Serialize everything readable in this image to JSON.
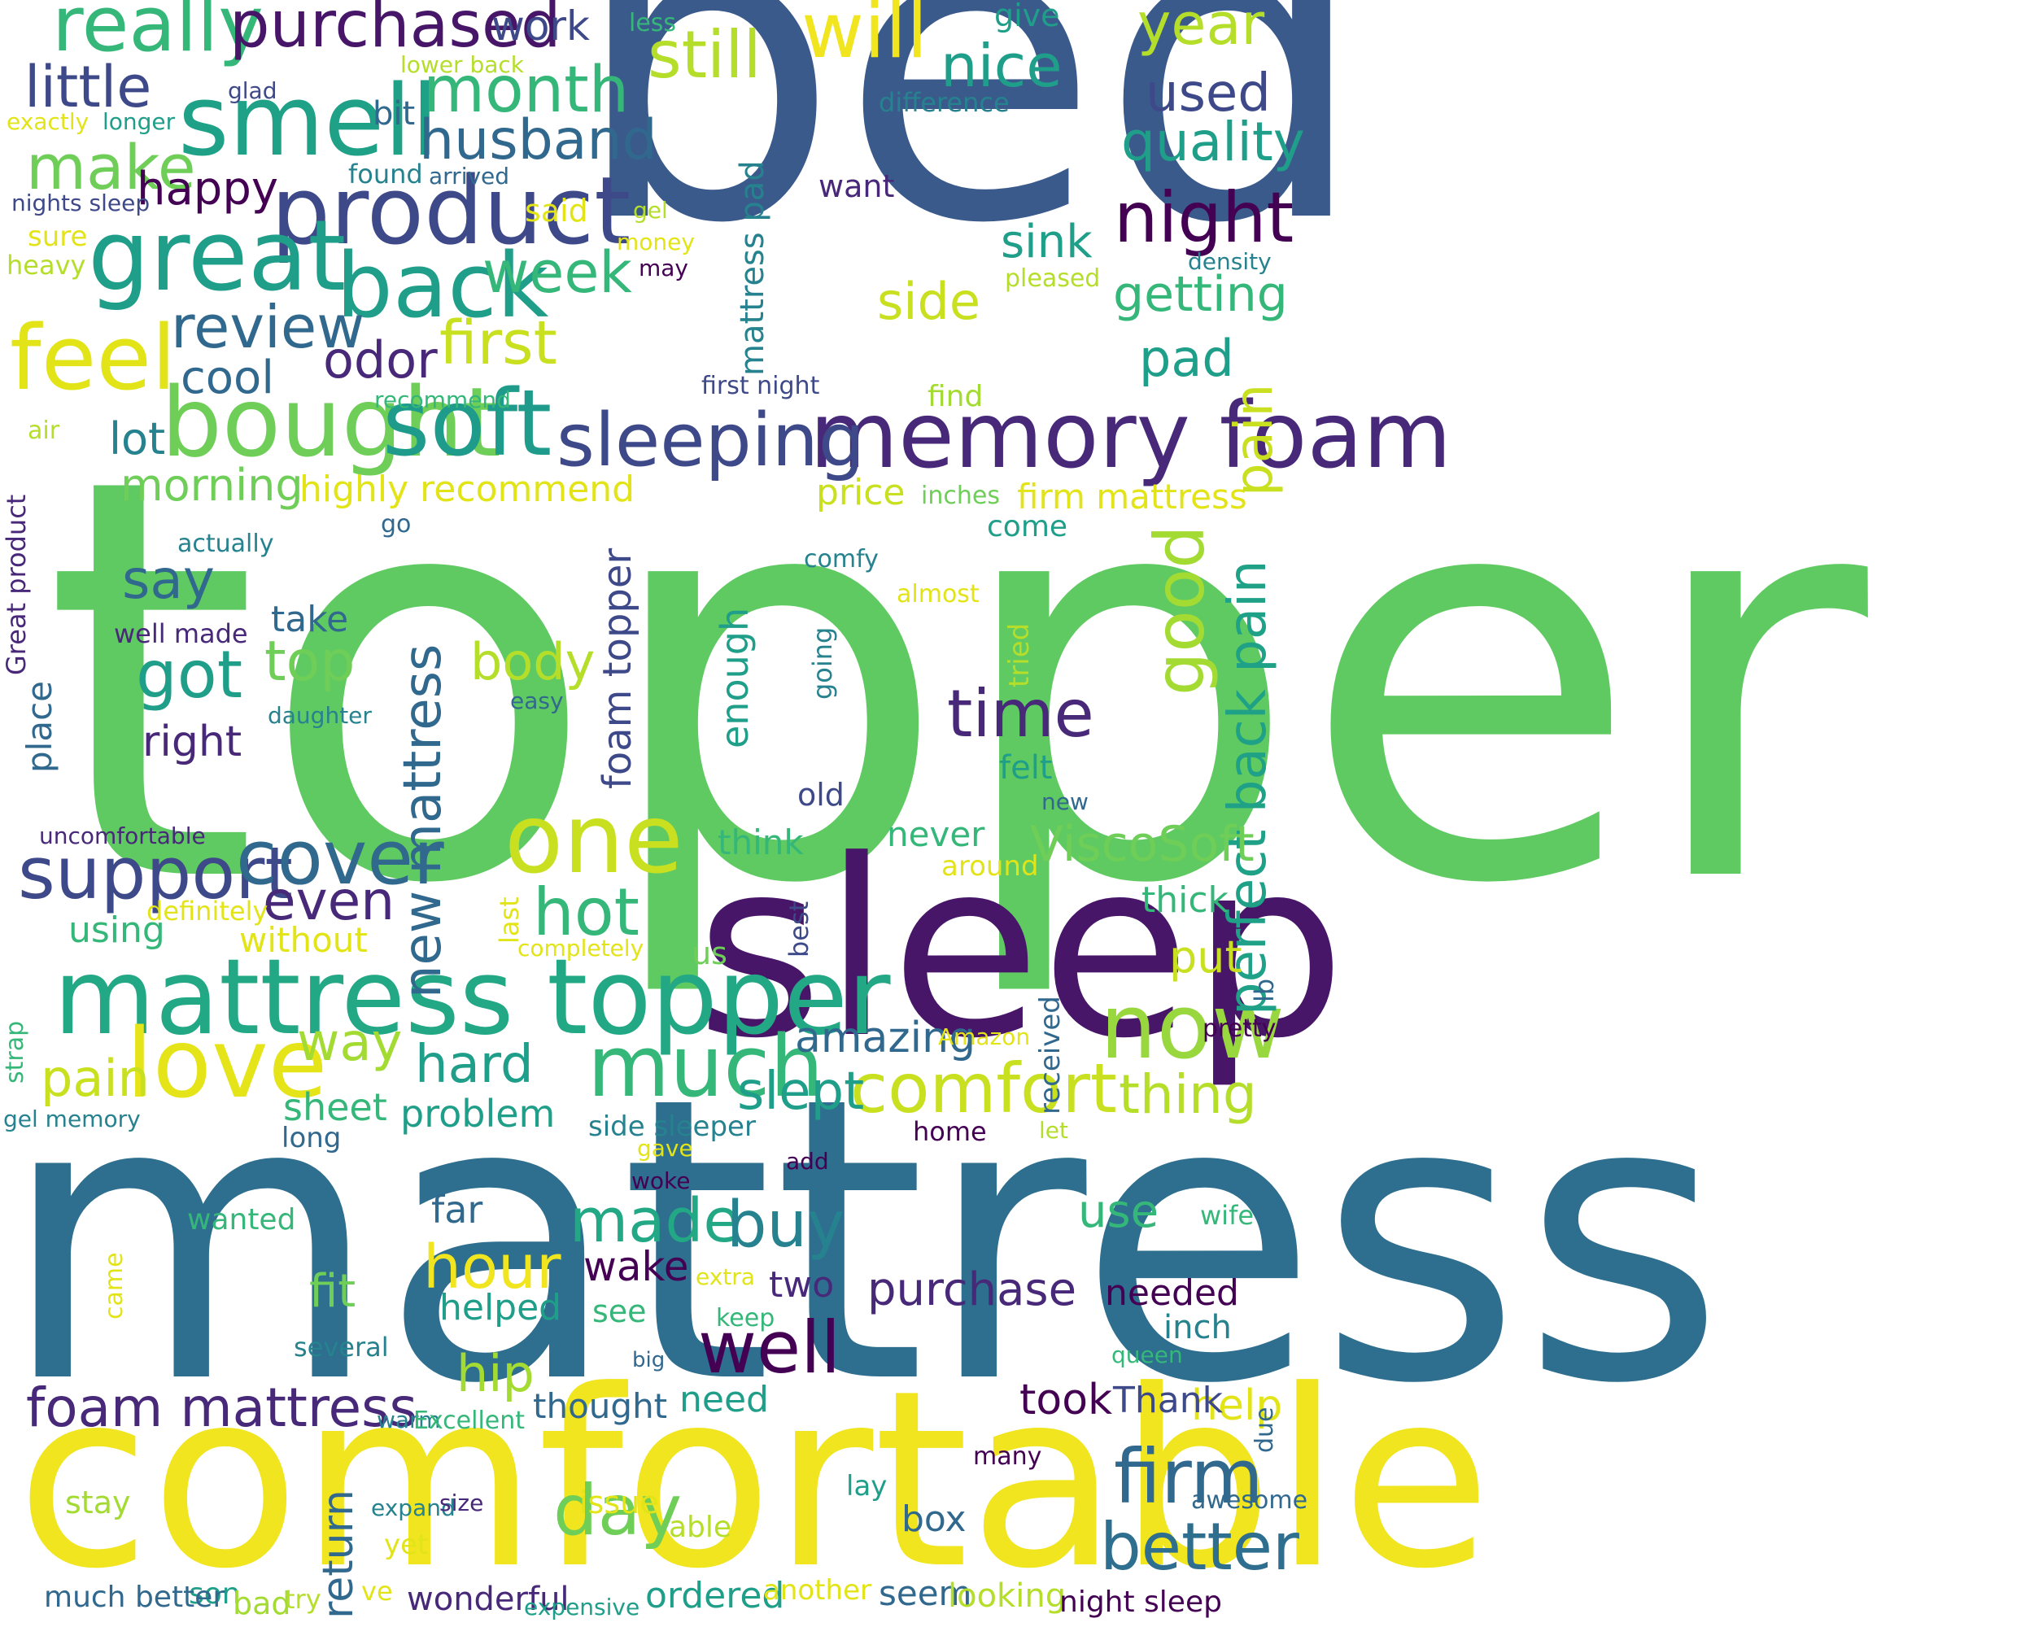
{
  "palette": {
    "dark_purple": "#440154",
    "indigo": "#482878",
    "slate_blue": "#3e4989",
    "steel_blue": "#31688e",
    "teal_blue": "#26828e",
    "teal": "#1f9e89",
    "sea_green": "#35b779",
    "green": "#6ece58",
    "yellow_green": "#b5de2b",
    "yellow": "#fde725"
  },
  "words": [
    "bed",
    "topper",
    "mattress",
    "comfortable",
    "sleep",
    "mattress topper",
    "memory foam",
    "product",
    "great",
    "smell",
    "bought",
    "soft",
    "back",
    "feel",
    "one",
    "love",
    "much",
    "now",
    "sleeping",
    "support",
    "cover",
    "foam mattress",
    "firm",
    "better",
    "really",
    "purchased",
    "will",
    "still",
    "nice",
    "year",
    "night",
    "time",
    "good",
    "perfect back pain",
    "new mattress",
    "hot",
    "day",
    "well",
    "comfort",
    "made",
    "buy",
    "hour",
    "first",
    "week",
    "month",
    "husband",
    "make",
    "little",
    "review",
    "got",
    "top",
    "body",
    "cool",
    "odor",
    "say",
    "even",
    "pain",
    "way",
    "hard",
    "slept",
    "thing",
    "quality",
    "used",
    "getting",
    "sink",
    "side",
    "pad",
    "ViscoSoft",
    "happy",
    "lot",
    "morning",
    "highly recommend",
    "right",
    "take",
    "hip",
    "amazing",
    "purchase",
    "needed",
    "took",
    "help",
    "return",
    "wake",
    "use",
    "fit",
    "two",
    "sheet",
    "problem",
    "far",
    "helped",
    "need",
    "thought",
    "box",
    "inch",
    "Thank",
    "seem",
    "ordered",
    "wonderful",
    "looking",
    "night sleep",
    "son",
    "bad",
    "stay",
    "work",
    "give",
    "mattress pad",
    "foam topper",
    "enough",
    "price",
    "firm mattress",
    "find",
    "come",
    "think",
    "never",
    "put",
    "thick",
    "using",
    "without",
    "definitely",
    "uncomfortable",
    "place",
    "well made",
    "actually",
    "Great product",
    "air",
    "recommend",
    "first night",
    "inches",
    "comfy",
    "almost",
    "go",
    "going",
    "easy",
    "daughter",
    "tried",
    "felt",
    "old",
    "new",
    "around",
    "last",
    "completely",
    "us",
    "best",
    "lb",
    "pretty",
    "received",
    "Amazon",
    "side sleeper",
    "home",
    "gave",
    "let",
    "woke",
    "add",
    "long",
    "gel memory",
    "strap",
    "wanted",
    "came",
    "extra",
    "keep",
    "see",
    "several",
    "big",
    "queen",
    "wife",
    "warm",
    "Excellent",
    "many",
    "due",
    "awesome",
    "able",
    "issue",
    "lay",
    "expand",
    "size",
    "yet",
    "ve",
    "try",
    "expensive",
    "another",
    "much better",
    "difference",
    "less",
    "lower back",
    "glad",
    "longer",
    "exactly",
    "bit",
    "found",
    "arrived",
    "said",
    "nights sleep",
    "sure",
    "heavy",
    "gel",
    "money",
    "may",
    "want",
    "pleased",
    "density"
  ]
}
